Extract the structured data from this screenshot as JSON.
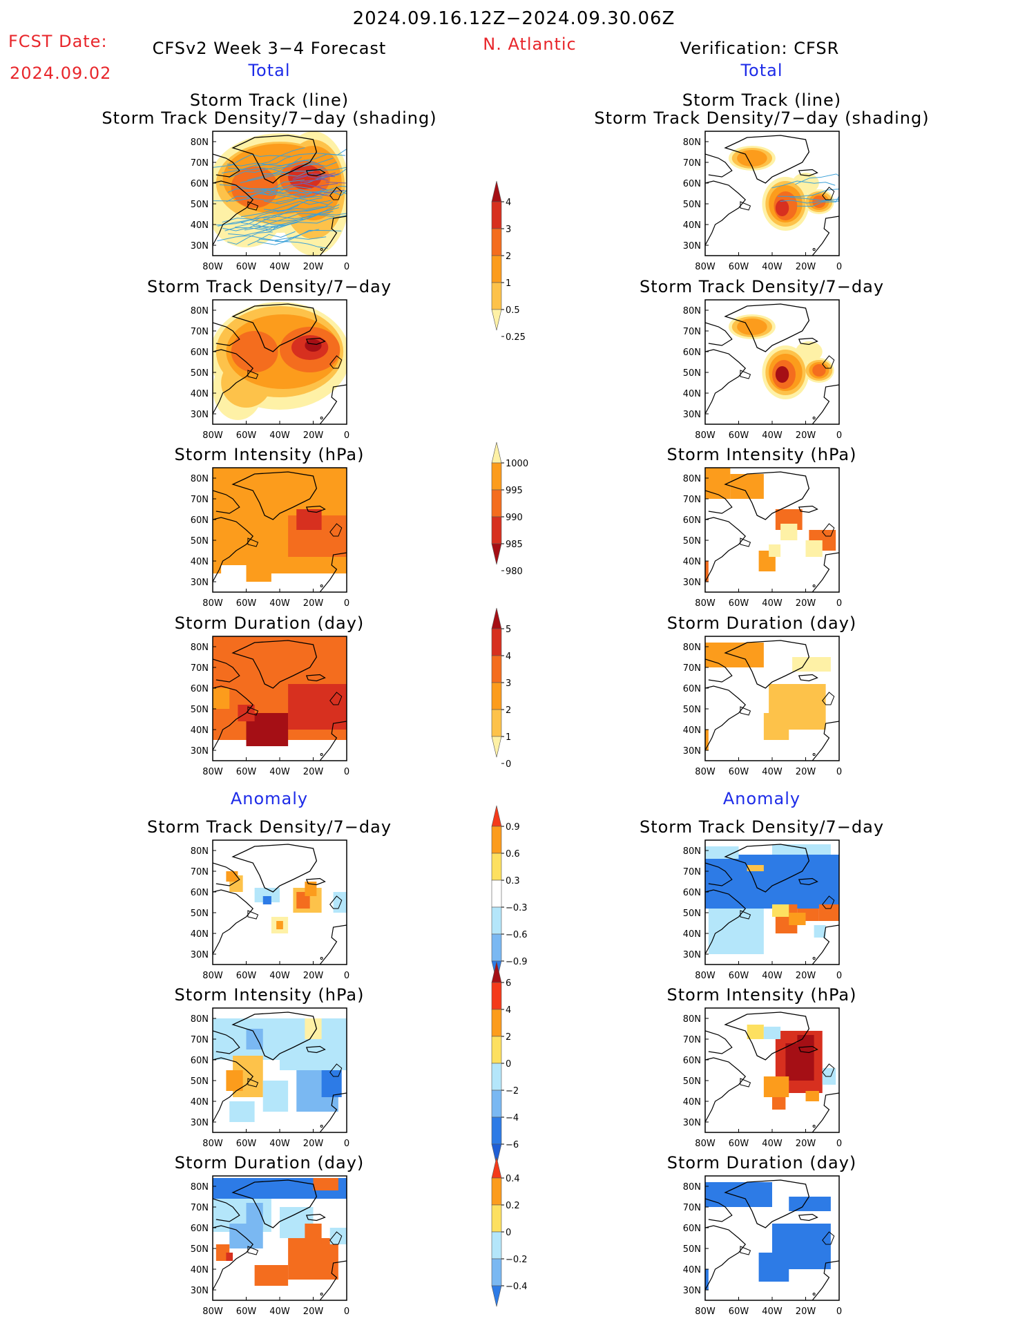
{
  "header": {
    "period": "2024.09.16.12Z−2024.09.30.06Z",
    "fcst_label": "FCST Date:",
    "fcst_date": "2024.09.02",
    "model": "CFSv2 Week 3−4 Forecast",
    "region": "N. Atlantic",
    "verification": "Verification: CFSR",
    "total_left": "Total",
    "total_right": "Total",
    "anomaly_left": "Anomaly",
    "anomaly_right": "Anomaly"
  },
  "axes": {
    "lon_labels": [
      "80W",
      "60W",
      "40W",
      "20W",
      "0"
    ],
    "lat_labels": [
      "80N",
      "70N",
      "60N",
      "50N",
      "40N",
      "30N"
    ]
  },
  "panel_titles": {
    "track_line": "Storm Track (line)",
    "track_shading": "Storm Track Density/7−day (shading)",
    "density": "Storm Track Density/7−day",
    "intensity": "Storm Intensity (hPa)",
    "duration": "Storm Duration (day)"
  },
  "colorbars": {
    "density": {
      "labels": [
        "4",
        "3",
        "2",
        "1",
        "0.5",
        "0.25"
      ],
      "colors": [
        "#a50f15",
        "#d7301f",
        "#f46d1e",
        "#fc9c1c",
        "#fdc24a",
        "#fef1a6"
      ]
    },
    "intensity": {
      "labels": [
        "1000",
        "995",
        "990",
        "985",
        "980"
      ],
      "colors": [
        "#fef1a6",
        "#fc9c1c",
        "#f46d1e",
        "#d7301f",
        "#a50f15"
      ]
    },
    "duration": {
      "labels": [
        "5",
        "4",
        "3",
        "2",
        "1",
        "0"
      ],
      "colors": [
        "#a50f15",
        "#d7301f",
        "#f46d1e",
        "#fc9c1c",
        "#fdc24a",
        "#fef1a6"
      ]
    },
    "density_anom": {
      "labels": [
        "0.9",
        "0.6",
        "0.3",
        "−0.3",
        "−0.6",
        "−0.9"
      ],
      "colors": [
        "#f43a1a",
        "#fc9c1c",
        "#fde060",
        "#ffffff",
        "#b4e6fa",
        "#7ab8f2",
        "#2d7be6"
      ]
    },
    "intensity_anom": {
      "labels": [
        "6",
        "4",
        "2",
        "0",
        "−2",
        "−4",
        "−6"
      ],
      "colors": [
        "#a50f15",
        "#f43a1a",
        "#fc9c1c",
        "#fde060",
        "#b4e6fa",
        "#7ab8f2",
        "#2d7be6",
        "#1f5fd6"
      ]
    },
    "duration_anom": {
      "labels": [
        "0.4",
        "0.2",
        "0",
        "−0.2",
        "−0.4"
      ],
      "colors": [
        "#f43a1a",
        "#fc9c1c",
        "#fde060",
        "#b4e6fa",
        "#7ab8f2",
        "#2d7be6"
      ]
    }
  },
  "map_colors": {
    "very_low": "#fef1a6",
    "low": "#fdc24a",
    "mid": "#fc9c1c",
    "high": "#f46d1e",
    "very_high": "#d7301f",
    "extreme": "#a50f15",
    "neg_light": "#b4e6fa",
    "neg_mid": "#7ab8f2",
    "neg_strong": "#2d7be6",
    "neg_deep": "#1f5fd6",
    "track_line": "#3aa0d8",
    "coast": "#000000"
  }
}
